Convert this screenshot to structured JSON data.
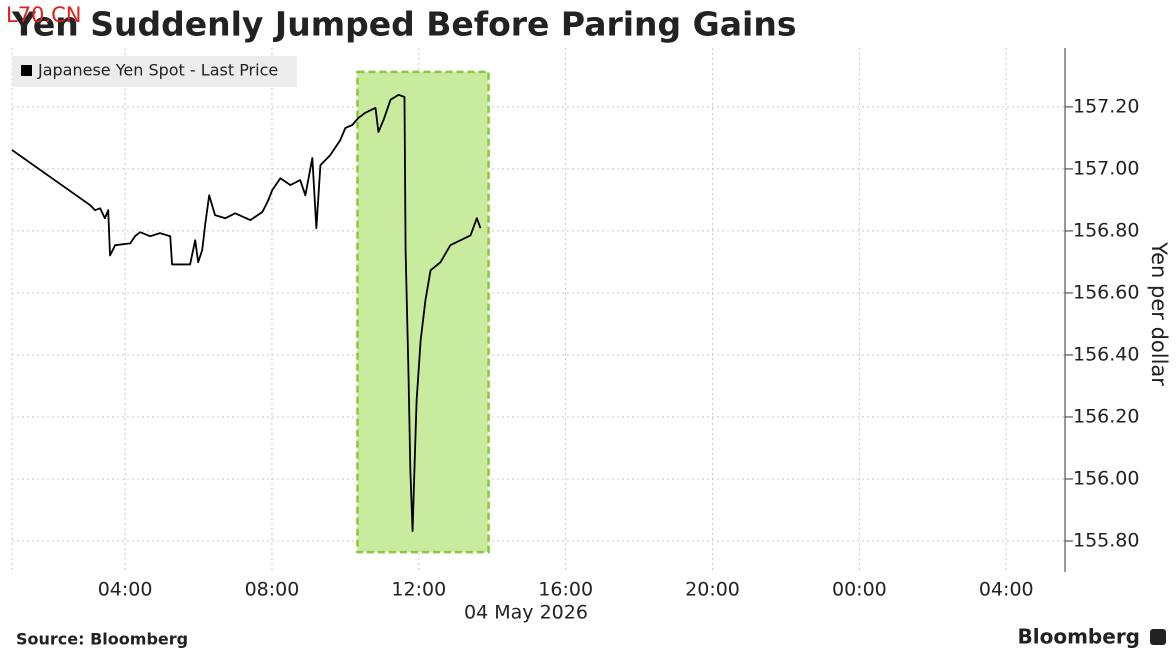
{
  "chart_data": {
    "type": "line",
    "title": "Yen Suddenly Jumped Before Paring Gains",
    "watermark": "L70.CN",
    "x_label": "04 May 2026",
    "y_label": "Yen per dollar",
    "source": "Source: Bloomberg",
    "brand": "Bloomberg",
    "legend": "top-left",
    "grid": true,
    "x": [
      0.92,
      3.05,
      3.18,
      3.32,
      3.45,
      3.54,
      3.59,
      3.73,
      4.14,
      4.27,
      4.41,
      4.68,
      4.95,
      5.23,
      5.28,
      5.77,
      5.91,
      5.99,
      6.1,
      6.18,
      6.29,
      6.45,
      6.73,
      7.0,
      7.41,
      7.74,
      7.9,
      8.01,
      8.23,
      8.5,
      8.77,
      8.91,
      9.1,
      9.21,
      9.32,
      9.59,
      9.86,
      10.0,
      10.19,
      10.35,
      10.54,
      10.82,
      10.9,
      11.04,
      11.23,
      11.45,
      11.61,
      11.64,
      11.72,
      11.77,
      11.83,
      11.88,
      11.94,
      12.05,
      12.18,
      12.32,
      12.59,
      12.86,
      13.14,
      13.41,
      13.58,
      13.68
    ],
    "series": [
      {
        "name": "Japanese Yen Spot - Last Price",
        "color": "#000000",
        "values": [
          157.061,
          156.883,
          156.867,
          156.873,
          156.841,
          156.867,
          156.721,
          156.754,
          156.76,
          156.783,
          156.796,
          156.783,
          156.793,
          156.783,
          156.692,
          156.692,
          156.77,
          156.699,
          156.738,
          156.819,
          156.915,
          156.851,
          156.841,
          156.857,
          156.835,
          156.861,
          156.899,
          156.932,
          156.97,
          156.948,
          156.964,
          156.915,
          157.035,
          156.809,
          157.012,
          157.045,
          157.093,
          157.132,
          157.142,
          157.164,
          157.181,
          157.197,
          157.119,
          157.158,
          157.223,
          157.239,
          157.232,
          156.738,
          156.334,
          156.026,
          155.832,
          156.026,
          156.253,
          156.447,
          156.576,
          156.673,
          156.699,
          156.754,
          156.77,
          156.786,
          156.841,
          156.809
        ]
      }
    ],
    "highlight_color": "#c8eb9e",
    "highlight_xlim": [
      10.33,
      13.9
    ],
    "highlight_ylim": [
      155.764,
      157.313
    ],
    "xlim": [
      0.92,
      29.6
    ],
    "xticks": [
      {
        "value": 4,
        "label": "04:00"
      },
      {
        "value": 8,
        "label": "08:00"
      },
      {
        "value": 12,
        "label": "12:00"
      },
      {
        "value": 16,
        "label": "16:00"
      },
      {
        "value": 20,
        "label": "20:00"
      },
      {
        "value": 24,
        "label": "00:00"
      },
      {
        "value": 28,
        "label": "04:00"
      }
    ],
    "ylim": [
      155.7,
      157.39
    ],
    "yticks": [
      {
        "value": 155.8,
        "label": "155.80"
      },
      {
        "value": 156.0,
        "label": "156.00"
      },
      {
        "value": 156.2,
        "label": "156.20"
      },
      {
        "value": 156.4,
        "label": "156.40"
      },
      {
        "value": 156.6,
        "label": "156.60"
      },
      {
        "value": 156.8,
        "label": "156.80"
      },
      {
        "value": 157.0,
        "label": "157.00"
      },
      {
        "value": 157.2,
        "label": "157.20"
      }
    ]
  }
}
